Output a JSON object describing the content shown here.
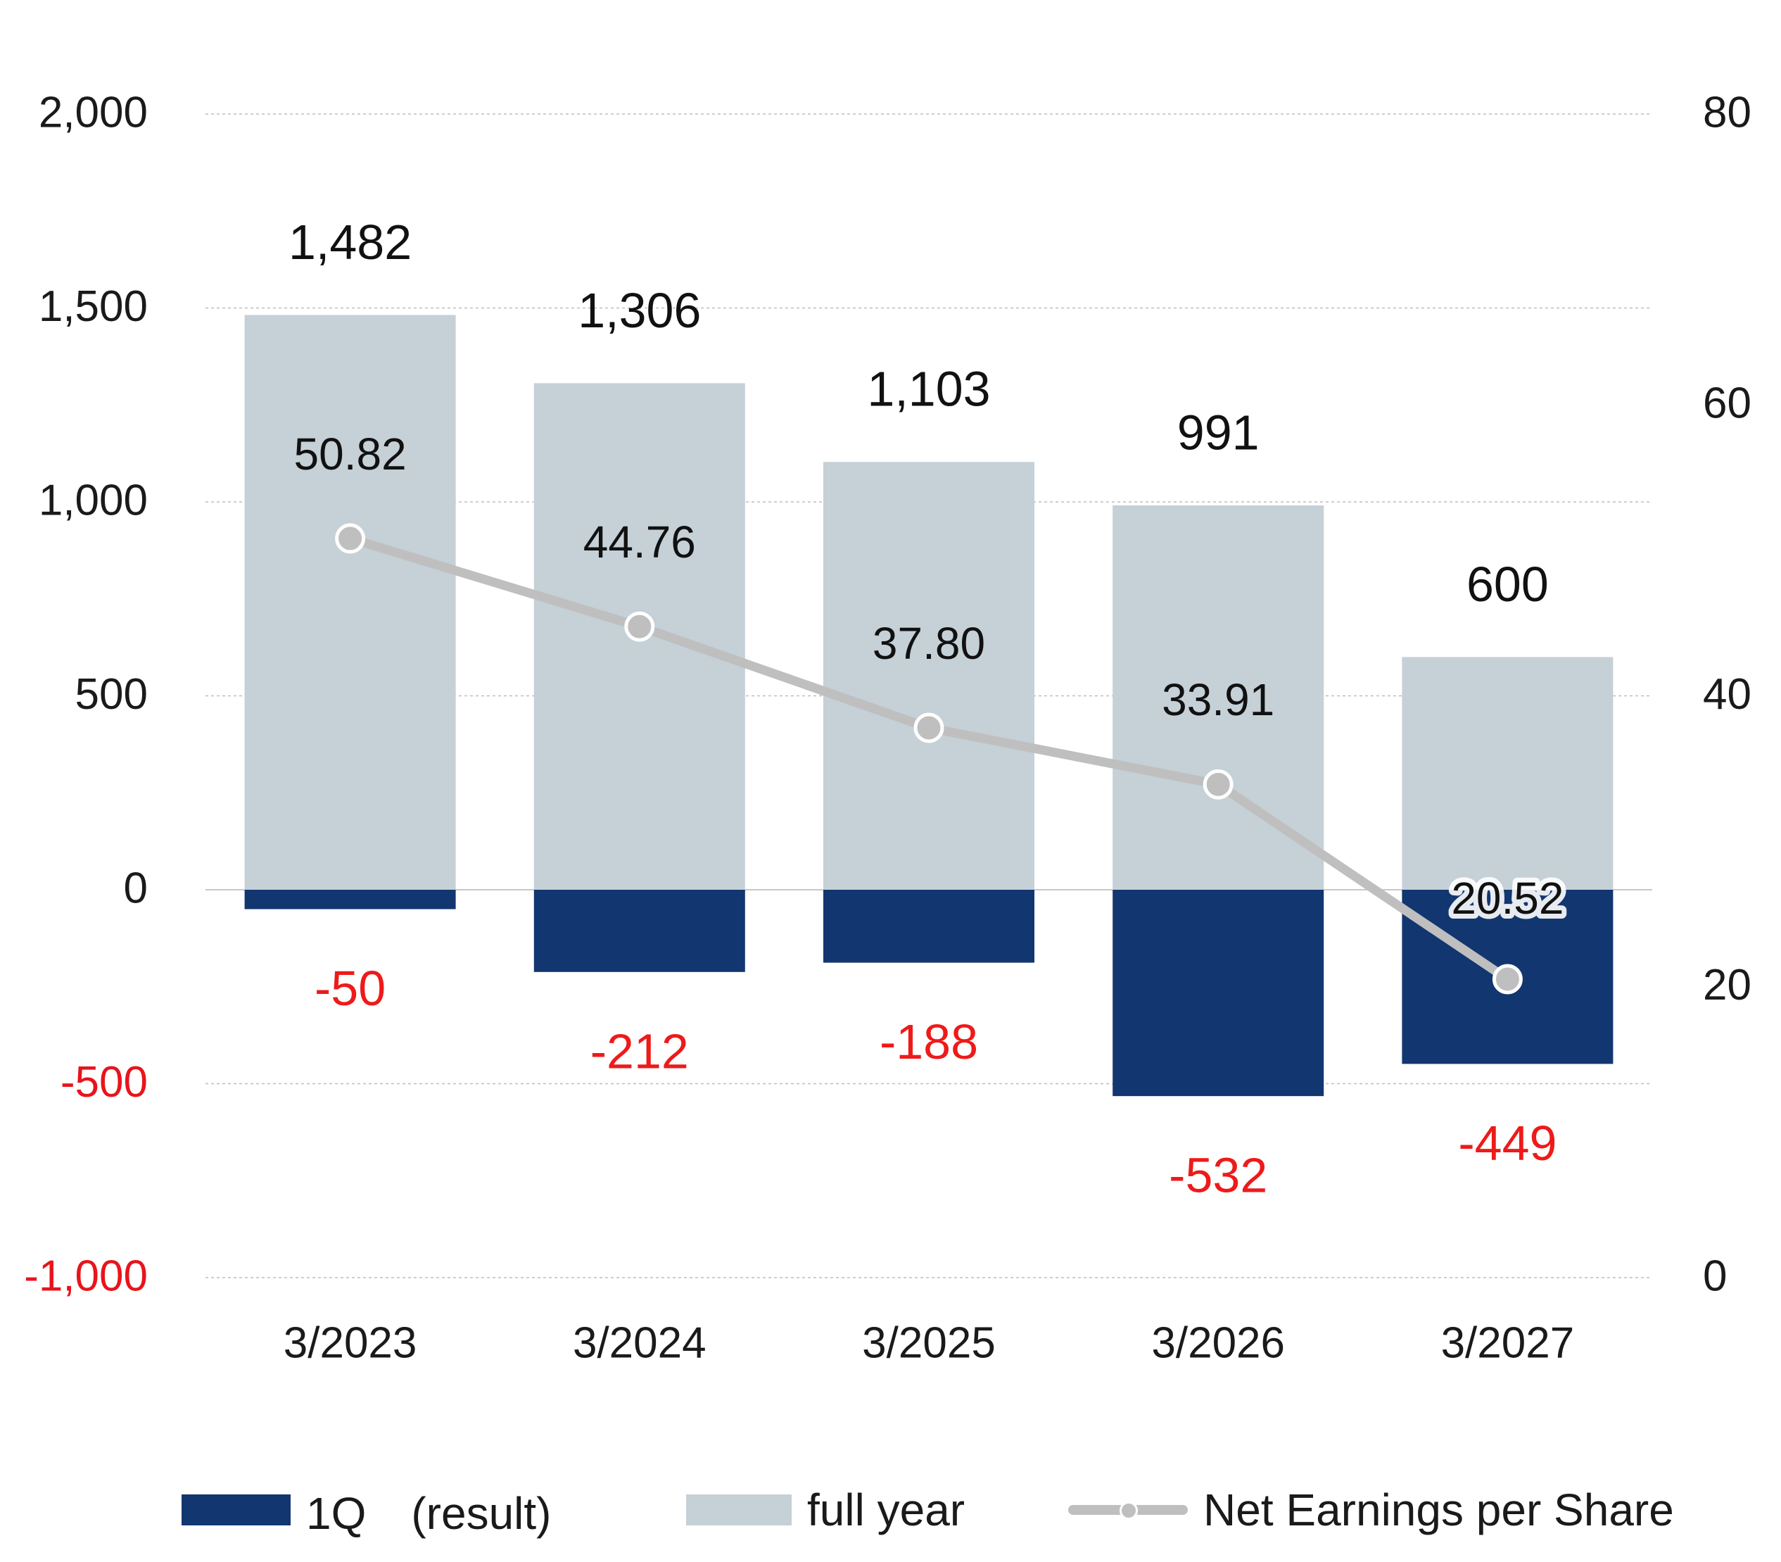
{
  "chart_data": {
    "type": "bar",
    "categories": [
      "3/2023",
      "3/2024",
      "3/2025",
      "3/2026",
      "3/2027"
    ],
    "series": [
      {
        "name": "1Q　(result)",
        "kind": "bar",
        "axis": "left",
        "color": "#12366f",
        "values": [
          -50,
          -212,
          -188,
          -532,
          -449
        ],
        "labels": [
          "-50",
          "-212",
          "-188",
          "-532",
          "-449"
        ]
      },
      {
        "name": "full year",
        "kind": "bar",
        "axis": "left",
        "color": "#c5d0d7",
        "values": [
          1482,
          1306,
          1103,
          991,
          600
        ],
        "labels": [
          "1,482",
          "1,306",
          "1,103",
          "991",
          "600"
        ]
      },
      {
        "name": "Net Earnings per Share",
        "kind": "line",
        "axis": "right",
        "color": "#bfbfbf",
        "values": [
          50.82,
          44.76,
          37.8,
          33.91,
          20.52
        ],
        "labels": [
          "50.82",
          "44.76",
          "37.80",
          "33.91",
          "20.52"
        ]
      }
    ],
    "left_axis": {
      "ylim": [
        -1000,
        2000
      ],
      "ticks": [
        2000,
        1500,
        1000,
        500,
        0,
        -500,
        -1000
      ],
      "tick_labels": [
        "2,000",
        "1,500",
        "1,000",
        "500",
        "0",
        "-500",
        "-1,000"
      ]
    },
    "right_axis": {
      "ylim": [
        0,
        80
      ],
      "ticks": [
        80,
        60,
        40,
        20,
        0
      ],
      "tick_labels": [
        "80",
        "60",
        "40",
        "20",
        "0"
      ]
    },
    "grid": true,
    "legend_position": "bottom",
    "negative_label_color": "#ee1a1a"
  },
  "legend": {
    "q1_label": "1Q　(result)",
    "full_year_label": "full year",
    "eps_label": "Net Earnings per Share"
  }
}
